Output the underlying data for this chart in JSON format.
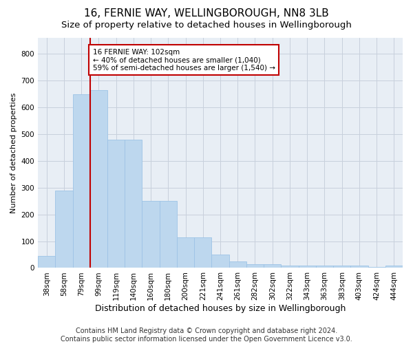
{
  "title1": "16, FERNIE WAY, WELLINGBOROUGH, NN8 3LB",
  "title2": "Size of property relative to detached houses in Wellingborough",
  "xlabel": "Distribution of detached houses by size in Wellingborough",
  "ylabel": "Number of detached properties",
  "categories": [
    "38sqm",
    "58sqm",
    "79sqm",
    "99sqm",
    "119sqm",
    "140sqm",
    "160sqm",
    "180sqm",
    "200sqm",
    "221sqm",
    "241sqm",
    "261sqm",
    "282sqm",
    "302sqm",
    "322sqm",
    "343sqm",
    "363sqm",
    "383sqm",
    "403sqm",
    "424sqm",
    "444sqm"
  ],
  "values": [
    45,
    290,
    650,
    665,
    480,
    480,
    250,
    250,
    115,
    115,
    50,
    25,
    15,
    15,
    10,
    8,
    8,
    8,
    8,
    5,
    8
  ],
  "bar_color": "#bdd7ee",
  "bar_edge_color": "#9dc3e6",
  "vline_x_index": 3,
  "vline_color": "#c00000",
  "annotation_text": "16 FERNIE WAY: 102sqm\n← 40% of detached houses are smaller (1,040)\n59% of semi-detached houses are larger (1,540) →",
  "annotation_box_edge_color": "#c00000",
  "ylim": [
    0,
    860
  ],
  "yticks": [
    0,
    100,
    200,
    300,
    400,
    500,
    600,
    700,
    800
  ],
  "footer1": "Contains HM Land Registry data © Crown copyright and database right 2024.",
  "footer2": "Contains public sector information licensed under the Open Government Licence v3.0.",
  "background_color": "#ffffff",
  "grid_color": "#c8d0dc",
  "title1_fontsize": 11,
  "title2_fontsize": 9.5,
  "xlabel_fontsize": 9,
  "ylabel_fontsize": 8,
  "tick_fontsize": 7.5,
  "annotation_fontsize": 7.5,
  "footer_fontsize": 7
}
